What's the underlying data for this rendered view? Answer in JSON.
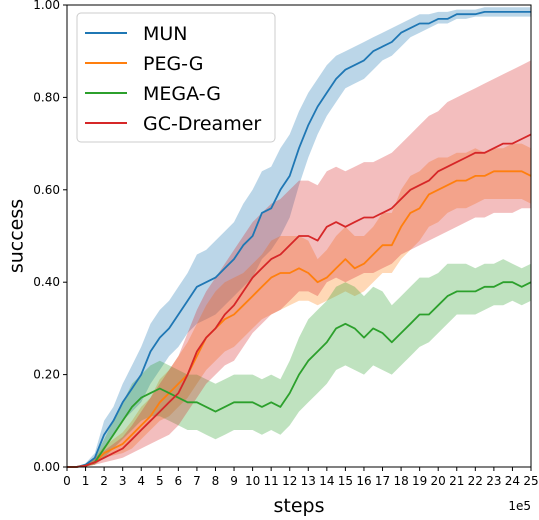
{
  "chart_data": {
    "type": "line",
    "xlabel": "steps",
    "ylabel": "success",
    "x_offset_label": "1e5",
    "xlim": [
      0,
      25
    ],
    "ylim": [
      0,
      1.0
    ],
    "grid": false,
    "legend_position": "upper-left",
    "x_ticks": [
      0,
      1,
      2,
      3,
      4,
      5,
      6,
      7,
      8,
      9,
      10,
      11,
      12,
      13,
      14,
      15,
      16,
      17,
      18,
      19,
      20,
      21,
      22,
      23,
      24,
      25
    ],
    "x_tick_labels": [
      "0",
      "1",
      "2",
      "3",
      "4",
      "5",
      "6",
      "7",
      "8",
      "9",
      "10",
      "11",
      "12",
      "13",
      "14",
      "15",
      "16",
      "17",
      "18",
      "19",
      "20",
      "21",
      "22",
      "23",
      "24",
      "25"
    ],
    "y_ticks": [
      0,
      0.2,
      0.4,
      0.6,
      0.8,
      1.0
    ],
    "y_tick_labels": [
      "0.00",
      "0.20",
      "0.40",
      "0.60",
      "0.80",
      "1.00"
    ],
    "x": [
      0,
      0.5,
      1,
      1.5,
      2,
      2.5,
      3,
      3.5,
      4,
      4.5,
      5,
      5.5,
      6,
      6.5,
      7,
      7.5,
      8,
      8.5,
      9,
      9.5,
      10,
      10.5,
      11,
      11.5,
      12,
      12.5,
      13,
      13.5,
      14,
      14.5,
      15,
      15.5,
      16,
      16.5,
      17,
      17.5,
      18,
      18.5,
      19,
      19.5,
      20,
      20.5,
      21,
      21.5,
      22,
      22.5,
      23,
      23.5,
      24,
      24.5,
      25
    ],
    "series": [
      {
        "name": "MUN",
        "color": "#1f77b4",
        "mean": [
          0,
          0,
          0.005,
          0.02,
          0.07,
          0.1,
          0.14,
          0.17,
          0.2,
          0.25,
          0.28,
          0.3,
          0.33,
          0.36,
          0.39,
          0.4,
          0.41,
          0.43,
          0.45,
          0.48,
          0.5,
          0.55,
          0.56,
          0.6,
          0.63,
          0.69,
          0.74,
          0.78,
          0.81,
          0.84,
          0.86,
          0.87,
          0.88,
          0.9,
          0.91,
          0.92,
          0.94,
          0.95,
          0.96,
          0.96,
          0.97,
          0.97,
          0.98,
          0.98,
          0.98,
          0.985,
          0.985,
          0.985,
          0.985,
          0.985,
          0.985
        ],
        "lower": [
          0,
          0,
          0.003,
          0.01,
          0.04,
          0.07,
          0.1,
          0.12,
          0.14,
          0.18,
          0.21,
          0.24,
          0.26,
          0.29,
          0.31,
          0.32,
          0.33,
          0.35,
          0.37,
          0.39,
          0.41,
          0.45,
          0.47,
          0.5,
          0.54,
          0.61,
          0.67,
          0.72,
          0.76,
          0.79,
          0.82,
          0.83,
          0.84,
          0.86,
          0.88,
          0.89,
          0.91,
          0.93,
          0.94,
          0.95,
          0.96,
          0.96,
          0.97,
          0.97,
          0.975,
          0.975,
          0.975,
          0.975,
          0.975,
          0.975,
          0.975
        ],
        "upper": [
          0,
          0,
          0.008,
          0.03,
          0.1,
          0.13,
          0.18,
          0.22,
          0.26,
          0.31,
          0.34,
          0.36,
          0.39,
          0.42,
          0.46,
          0.47,
          0.49,
          0.51,
          0.53,
          0.57,
          0.6,
          0.64,
          0.65,
          0.69,
          0.72,
          0.77,
          0.81,
          0.84,
          0.87,
          0.89,
          0.9,
          0.91,
          0.92,
          0.93,
          0.94,
          0.95,
          0.96,
          0.97,
          0.98,
          0.98,
          0.985,
          0.985,
          0.99,
          0.99,
          0.99,
          0.995,
          0.995,
          0.995,
          0.995,
          0.995,
          0.995
        ]
      },
      {
        "name": "PEG-G",
        "color": "#ff7f0e",
        "mean": [
          0,
          0,
          0.003,
          0.01,
          0.03,
          0.04,
          0.05,
          0.07,
          0.09,
          0.11,
          0.14,
          0.16,
          0.18,
          0.2,
          0.24,
          0.28,
          0.3,
          0.32,
          0.33,
          0.35,
          0.37,
          0.39,
          0.41,
          0.42,
          0.42,
          0.43,
          0.42,
          0.4,
          0.41,
          0.43,
          0.45,
          0.43,
          0.44,
          0.46,
          0.48,
          0.48,
          0.52,
          0.55,
          0.56,
          0.59,
          0.6,
          0.61,
          0.62,
          0.62,
          0.63,
          0.63,
          0.64,
          0.64,
          0.64,
          0.64,
          0.63
        ],
        "lower": [
          0,
          0,
          0.001,
          0.005,
          0.02,
          0.025,
          0.03,
          0.04,
          0.06,
          0.08,
          0.1,
          0.11,
          0.13,
          0.15,
          0.18,
          0.21,
          0.23,
          0.25,
          0.26,
          0.28,
          0.3,
          0.32,
          0.33,
          0.34,
          0.35,
          0.36,
          0.36,
          0.35,
          0.36,
          0.37,
          0.38,
          0.37,
          0.38,
          0.4,
          0.42,
          0.42,
          0.45,
          0.47,
          0.49,
          0.52,
          0.53,
          0.55,
          0.56,
          0.56,
          0.57,
          0.58,
          0.58,
          0.58,
          0.58,
          0.58,
          0.57
        ],
        "upper": [
          0,
          0,
          0.006,
          0.02,
          0.045,
          0.06,
          0.075,
          0.1,
          0.13,
          0.15,
          0.19,
          0.21,
          0.24,
          0.27,
          0.31,
          0.35,
          0.38,
          0.4,
          0.41,
          0.42,
          0.44,
          0.46,
          0.49,
          0.5,
          0.5,
          0.5,
          0.49,
          0.45,
          0.47,
          0.5,
          0.52,
          0.5,
          0.5,
          0.52,
          0.55,
          0.55,
          0.6,
          0.63,
          0.64,
          0.66,
          0.67,
          0.67,
          0.68,
          0.68,
          0.69,
          0.68,
          0.69,
          0.69,
          0.7,
          0.7,
          0.69
        ]
      },
      {
        "name": "MEGA-G",
        "color": "#2ca02c",
        "mean": [
          0,
          0,
          0.003,
          0.01,
          0.04,
          0.07,
          0.1,
          0.13,
          0.15,
          0.16,
          0.17,
          0.16,
          0.15,
          0.14,
          0.14,
          0.13,
          0.12,
          0.13,
          0.14,
          0.14,
          0.14,
          0.13,
          0.14,
          0.13,
          0.16,
          0.2,
          0.23,
          0.25,
          0.27,
          0.3,
          0.31,
          0.3,
          0.28,
          0.3,
          0.29,
          0.27,
          0.29,
          0.31,
          0.33,
          0.33,
          0.35,
          0.37,
          0.38,
          0.38,
          0.38,
          0.39,
          0.39,
          0.4,
          0.4,
          0.39,
          0.4
        ],
        "lower": [
          0,
          0,
          0.001,
          0.005,
          0.02,
          0.04,
          0.06,
          0.08,
          0.1,
          0.11,
          0.11,
          0.1,
          0.09,
          0.08,
          0.08,
          0.07,
          0.06,
          0.07,
          0.08,
          0.08,
          0.08,
          0.07,
          0.08,
          0.07,
          0.09,
          0.12,
          0.14,
          0.16,
          0.18,
          0.21,
          0.22,
          0.21,
          0.2,
          0.22,
          0.21,
          0.2,
          0.22,
          0.24,
          0.26,
          0.27,
          0.29,
          0.31,
          0.33,
          0.33,
          0.33,
          0.34,
          0.35,
          0.35,
          0.36,
          0.35,
          0.36
        ],
        "upper": [
          0,
          0,
          0.006,
          0.02,
          0.06,
          0.1,
          0.14,
          0.18,
          0.2,
          0.22,
          0.23,
          0.22,
          0.21,
          0.2,
          0.2,
          0.19,
          0.18,
          0.19,
          0.2,
          0.2,
          0.2,
          0.19,
          0.2,
          0.19,
          0.23,
          0.28,
          0.32,
          0.34,
          0.36,
          0.39,
          0.4,
          0.39,
          0.37,
          0.39,
          0.38,
          0.35,
          0.37,
          0.39,
          0.41,
          0.41,
          0.42,
          0.44,
          0.44,
          0.44,
          0.43,
          0.44,
          0.44,
          0.45,
          0.44,
          0.43,
          0.44
        ]
      },
      {
        "name": "GC-Dreamer",
        "color": "#d62728",
        "mean": [
          0,
          0,
          0.003,
          0.01,
          0.02,
          0.03,
          0.04,
          0.06,
          0.08,
          0.1,
          0.12,
          0.14,
          0.16,
          0.2,
          0.25,
          0.28,
          0.3,
          0.33,
          0.35,
          0.38,
          0.41,
          0.43,
          0.45,
          0.46,
          0.48,
          0.5,
          0.5,
          0.49,
          0.52,
          0.53,
          0.52,
          0.53,
          0.54,
          0.54,
          0.55,
          0.56,
          0.58,
          0.6,
          0.61,
          0.62,
          0.64,
          0.65,
          0.66,
          0.67,
          0.68,
          0.68,
          0.69,
          0.7,
          0.7,
          0.71,
          0.72
        ],
        "lower": [
          0,
          0,
          0.001,
          0.005,
          0.01,
          0.015,
          0.02,
          0.03,
          0.04,
          0.05,
          0.06,
          0.07,
          0.09,
          0.12,
          0.15,
          0.18,
          0.2,
          0.22,
          0.23,
          0.26,
          0.29,
          0.31,
          0.33,
          0.34,
          0.36,
          0.38,
          0.38,
          0.37,
          0.4,
          0.41,
          0.4,
          0.41,
          0.42,
          0.42,
          0.43,
          0.44,
          0.46,
          0.47,
          0.48,
          0.49,
          0.5,
          0.51,
          0.52,
          0.53,
          0.54,
          0.54,
          0.55,
          0.55,
          0.55,
          0.56,
          0.56
        ],
        "upper": [
          0,
          0,
          0.006,
          0.02,
          0.035,
          0.05,
          0.065,
          0.09,
          0.12,
          0.15,
          0.18,
          0.21,
          0.24,
          0.29,
          0.34,
          0.38,
          0.41,
          0.44,
          0.47,
          0.5,
          0.53,
          0.55,
          0.57,
          0.58,
          0.6,
          0.62,
          0.62,
          0.61,
          0.64,
          0.65,
          0.64,
          0.65,
          0.66,
          0.66,
          0.67,
          0.68,
          0.7,
          0.72,
          0.74,
          0.76,
          0.77,
          0.79,
          0.8,
          0.81,
          0.82,
          0.83,
          0.84,
          0.85,
          0.86,
          0.87,
          0.88
        ]
      }
    ]
  }
}
